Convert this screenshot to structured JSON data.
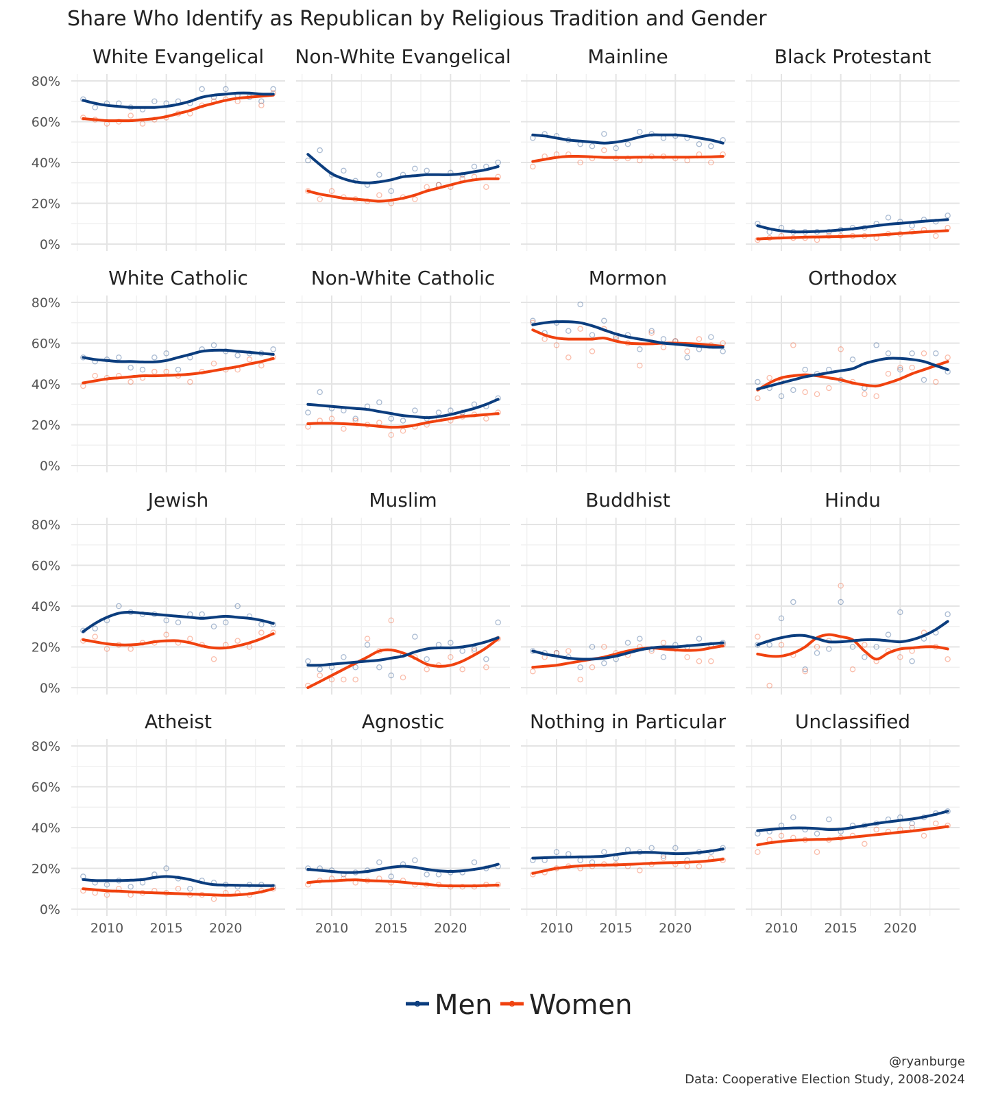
{
  "chart_data": {
    "type": "line",
    "title": "Share Who Identify as Republican by Religious Tradition and Gender",
    "x_ticks": [
      2010,
      2015,
      2020
    ],
    "xlim": [
      2007,
      2025
    ],
    "y_ticks": [
      0,
      20,
      40,
      60,
      80
    ],
    "y_tick_labels": [
      "0%",
      "20%",
      "40%",
      "60%",
      "80%"
    ],
    "ylim": [
      0,
      80
    ],
    "legend": {
      "position": "bottom",
      "entries": [
        {
          "name": "Men",
          "color": "#0b3d7e"
        },
        {
          "name": "Women",
          "color": "#f0420f"
        }
      ]
    },
    "caption_handle": "@ryanburge",
    "caption_source": "Data: Cooperative Election Study, 2008-2024",
    "years": [
      2008,
      2009,
      2010,
      2011,
      2012,
      2013,
      2014,
      2015,
      2016,
      2017,
      2018,
      2019,
      2020,
      2021,
      2022,
      2023,
      2024
    ],
    "facets": [
      {
        "name": "White Evangelical",
        "men_points": [
          71,
          67,
          69,
          69,
          67,
          66,
          70,
          69,
          70,
          69,
          76,
          72,
          76,
          73,
          72,
          70,
          76
        ],
        "women_points": [
          62,
          61,
          59,
          60,
          63,
          59,
          61,
          62,
          64,
          64,
          68,
          70,
          71,
          70,
          73,
          68,
          74
        ],
        "men_trend": [
          70.5,
          69,
          68,
          67.5,
          67,
          67,
          67,
          67.5,
          68.5,
          70,
          72,
          73,
          73.5,
          74,
          74,
          73.5,
          73.5
        ],
        "women_trend": [
          61.5,
          61,
          60.5,
          60.5,
          60.5,
          61,
          61.5,
          62.5,
          64,
          65.5,
          67.5,
          69,
          70.5,
          71.5,
          72,
          72.5,
          73
        ]
      },
      {
        "name": "Non-White Evangelical",
        "men_points": [
          41,
          46,
          34,
          36,
          31,
          29,
          34,
          26,
          34,
          37,
          36,
          29,
          35,
          34,
          38,
          38,
          40
        ],
        "women_points": [
          26,
          22,
          26,
          23,
          22,
          21,
          24,
          20,
          23,
          22,
          28,
          29,
          28,
          32,
          33,
          28,
          33
        ],
        "men_trend": [
          44,
          39,
          34.5,
          32,
          30.5,
          30,
          30.5,
          31.5,
          33,
          33.5,
          34,
          34,
          34,
          34.5,
          35.5,
          36.5,
          38
        ],
        "women_trend": [
          26,
          24.5,
          23.5,
          22.5,
          22,
          21.5,
          21,
          21.5,
          22.5,
          24,
          26,
          27.5,
          29,
          30.5,
          31.5,
          32,
          32
        ]
      },
      {
        "name": "Mainline",
        "men_points": [
          52,
          54,
          53,
          51,
          49,
          48,
          54,
          47,
          49,
          55,
          54,
          52,
          53,
          52,
          49,
          48,
          51
        ],
        "women_points": [
          38,
          43,
          44,
          44,
          40,
          42,
          46,
          42,
          42,
          41,
          43,
          43,
          42,
          41,
          44,
          40,
          44
        ],
        "men_trend": [
          53.5,
          53,
          52,
          51,
          50.5,
          50,
          49.5,
          50,
          51,
          52.5,
          53.5,
          53.5,
          53.5,
          53,
          52,
          51,
          49.5
        ],
        "women_trend": [
          40.5,
          41.5,
          42.5,
          43,
          43,
          42.8,
          42.5,
          42.5,
          42.5,
          42.6,
          42.6,
          42.6,
          42.6,
          42.6,
          42.7,
          42.8,
          43
        ]
      },
      {
        "name": "Black Protestant",
        "men_points": [
          10,
          6,
          8,
          6,
          6,
          6,
          6,
          7,
          8,
          8,
          10,
          13,
          11,
          9,
          12,
          11,
          14
        ],
        "women_points": [
          2,
          3,
          4,
          3,
          3,
          2,
          4,
          4,
          4,
          4,
          3,
          5,
          5,
          6,
          7,
          4,
          8
        ],
        "men_trend": [
          9,
          7.5,
          6.5,
          6,
          6,
          6.2,
          6.5,
          7,
          7.5,
          8.2,
          9,
          9.7,
          10.2,
          10.7,
          11.2,
          11.6,
          12
        ],
        "women_trend": [
          2.5,
          2.8,
          3,
          3.2,
          3.4,
          3.5,
          3.6,
          3.7,
          3.9,
          4.1,
          4.4,
          4.8,
          5.2,
          5.6,
          6,
          6.3,
          6.6
        ]
      },
      {
        "name": "White Catholic",
        "men_points": [
          53,
          51,
          52,
          53,
          48,
          47,
          53,
          55,
          47,
          53,
          57,
          59,
          56,
          54,
          55,
          55,
          57
        ],
        "women_points": [
          39,
          44,
          43,
          44,
          41,
          43,
          46,
          46,
          44,
          41,
          46,
          50,
          47,
          47,
          52,
          49,
          53
        ],
        "men_trend": [
          53,
          52,
          51.5,
          51,
          51,
          50.8,
          50.8,
          51.5,
          53,
          54.5,
          56,
          56.5,
          56.5,
          56,
          55.5,
          55,
          54.5
        ],
        "women_trend": [
          40.5,
          41.5,
          42.5,
          43,
          43.5,
          44,
          44,
          44.2,
          44.4,
          44.8,
          45.5,
          46.5,
          47.5,
          48.5,
          49.8,
          51,
          52.5
        ]
      },
      {
        "name": "Non-White Catholic",
        "men_points": [
          26,
          36,
          28,
          27,
          23,
          29,
          31,
          23,
          22,
          27,
          23,
          26,
          27,
          26,
          30,
          29,
          33
        ],
        "women_points": [
          19,
          22,
          23,
          18,
          22,
          20,
          21,
          15,
          17,
          19,
          20,
          23,
          22,
          24,
          25,
          23,
          26
        ],
        "men_trend": [
          30,
          29.5,
          29,
          28.5,
          28,
          27.5,
          26.5,
          25.5,
          24.5,
          24,
          23.5,
          24,
          25,
          26.5,
          28,
          30,
          32.5
        ],
        "women_trend": [
          20.5,
          20.7,
          20.7,
          20.5,
          20.2,
          19.8,
          19.2,
          18.8,
          19,
          19.8,
          21,
          22,
          23,
          24,
          24.5,
          25,
          25.5
        ]
      },
      {
        "name": "Mormon",
        "men_points": [
          71,
          65,
          70,
          66,
          79,
          64,
          71,
          63,
          64,
          57,
          66,
          62,
          61,
          53,
          57,
          63,
          56
        ],
        "women_points": [
          70,
          62,
          59,
          53,
          67,
          56,
          67,
          62,
          60,
          49,
          65,
          58,
          61,
          56,
          62,
          59,
          60
        ],
        "men_trend": [
          69,
          70,
          70.5,
          70.5,
          70,
          68.5,
          66.5,
          64.5,
          63,
          62,
          61,
          60,
          59.5,
          59,
          58.5,
          58,
          58
        ],
        "women_trend": [
          66.5,
          64,
          62.5,
          62,
          62,
          62,
          62.5,
          61,
          60,
          59.7,
          59.7,
          60,
          60,
          59.8,
          59.5,
          59,
          58.5
        ]
      },
      {
        "name": "Orthodox",
        "men_points": [
          41,
          38,
          34,
          37,
          47,
          45,
          47,
          42,
          52,
          38,
          59,
          55,
          47,
          55,
          42,
          55,
          46
        ],
        "women_points": [
          33,
          43,
          41,
          59,
          36,
          35,
          38,
          57,
          41,
          35,
          34,
          45,
          48,
          48,
          55,
          41,
          53
        ],
        "men_trend": [
          37.5,
          39,
          40.5,
          42,
          43.5,
          44.5,
          45.5,
          46.5,
          47.5,
          50,
          51.5,
          52.5,
          52.5,
          52,
          51,
          49,
          47
        ],
        "women_trend": [
          37,
          40.5,
          43,
          44,
          44.5,
          44,
          43,
          42,
          40.5,
          39.5,
          39,
          40.5,
          42.5,
          45,
          47,
          49,
          51
        ]
      },
      {
        "name": "Jewish",
        "men_points": [
          28,
          29,
          33,
          40,
          37,
          36,
          36,
          33,
          32,
          36,
          36,
          30,
          32,
          40,
          35,
          31,
          31
        ],
        "women_points": [
          23,
          25,
          19,
          21,
          19,
          22,
          22,
          26,
          22,
          24,
          21,
          14,
          21,
          23,
          20,
          27,
          27
        ],
        "men_trend": [
          27.5,
          31.5,
          34.5,
          36.5,
          37,
          36.5,
          36,
          35.5,
          35,
          34.5,
          34,
          34.5,
          35,
          34.5,
          34,
          33,
          31.5
        ],
        "women_trend": [
          23.5,
          22.5,
          21.5,
          21,
          21,
          21.5,
          22.5,
          23,
          23,
          22,
          20.5,
          19.5,
          19.5,
          20.5,
          22,
          24,
          26.5
        ]
      },
      {
        "name": "Muslim",
        "men_points": [
          13,
          9,
          10,
          15,
          10,
          21,
          10,
          6,
          16,
          25,
          14,
          21,
          22,
          18,
          19,
          14,
          32
        ],
        "women_points": [
          1,
          6,
          4,
          4,
          4,
          24,
          18,
          33,
          5,
          15,
          9,
          11,
          15,
          9,
          18,
          10,
          24
        ],
        "men_trend": [
          11,
          11,
          11.5,
          12,
          12.5,
          13,
          13.5,
          14.5,
          15.5,
          17.5,
          19,
          19.5,
          19.5,
          20,
          21,
          22.5,
          24.5
        ],
        "women_trend": [
          0,
          3,
          6,
          9,
          12,
          15,
          18,
          18.5,
          17,
          14.5,
          11.5,
          10.5,
          11,
          13,
          16,
          19.5,
          24
        ]
      },
      {
        "name": "Buddhist",
        "men_points": [
          18,
          17,
          17,
          15,
          10,
          20,
          12,
          14,
          22,
          24,
          19,
          15,
          21,
          20,
          24,
          21,
          22
        ],
        "women_points": [
          8,
          15,
          17,
          18,
          4,
          10,
          20,
          17,
          16,
          20,
          18,
          22,
          19,
          15,
          13,
          13,
          21
        ],
        "men_trend": [
          18,
          16.5,
          15.5,
          14.5,
          14,
          14,
          14.5,
          15.5,
          17,
          18.5,
          19.5,
          20,
          20,
          20.5,
          21,
          21.5,
          22
        ],
        "women_trend": [
          10,
          10.5,
          11,
          12,
          13,
          14,
          15,
          16.5,
          18,
          19,
          19.5,
          19,
          18.5,
          18.3,
          18.5,
          19.5,
          20.5
        ]
      },
      {
        "name": "Hindu",
        "men_points": [
          21,
          21,
          34,
          42,
          9,
          17,
          19,
          42,
          20,
          15,
          20,
          26,
          37,
          13,
          24,
          27,
          36
        ],
        "women_points": [
          25,
          1,
          21,
          16,
          8,
          20,
          23,
          50,
          9,
          21,
          13,
          18,
          15,
          18,
          27,
          20,
          14
        ],
        "men_trend": [
          21,
          23,
          24.5,
          25.5,
          25.5,
          24,
          22.5,
          22.5,
          23,
          23.5,
          23.5,
          23,
          22.5,
          23.5,
          25.5,
          28.5,
          32.5
        ],
        "women_trend": [
          16.5,
          15.5,
          15.5,
          17,
          20,
          24.5,
          26,
          25,
          23.5,
          18,
          14,
          17,
          19,
          19.5,
          20,
          20,
          19
        ]
      },
      {
        "name": "Atheist",
        "men_points": [
          16,
          13,
          12,
          14,
          11,
          13,
          17,
          20,
          15,
          10,
          14,
          13,
          12,
          11,
          12,
          12,
          11
        ],
        "women_points": [
          9,
          8,
          7,
          10,
          7,
          8,
          9,
          8,
          10,
          7,
          7,
          5,
          8,
          8,
          7,
          9,
          10
        ],
        "men_trend": [
          14.5,
          14,
          14,
          14,
          14.2,
          14.5,
          15.5,
          16,
          15.5,
          14.5,
          13,
          12,
          11.8,
          11.7,
          11.6,
          11.5,
          11.5
        ],
        "women_trend": [
          10,
          9.5,
          9,
          8.8,
          8.5,
          8.2,
          8,
          7.8,
          7.6,
          7.4,
          7.2,
          7,
          6.8,
          7,
          7.5,
          8.5,
          10
        ]
      },
      {
        "name": "Agnostic",
        "men_points": [
          20,
          20,
          19,
          17,
          18,
          19,
          23,
          16,
          22,
          24,
          17,
          17,
          18,
          18,
          23,
          20,
          21
        ],
        "women_points": [
          12,
          14,
          15,
          15,
          13,
          14,
          15,
          13,
          14,
          12,
          12,
          12,
          11,
          11,
          11,
          12,
          12
        ],
        "men_trend": [
          19.5,
          19,
          18.5,
          18,
          18,
          18.5,
          19.5,
          20.5,
          21,
          20.5,
          19.5,
          18.8,
          18.5,
          18.8,
          19.5,
          20.5,
          22
        ]
      },
      {
        "name": "Nothing in Particular",
        "men_points": [
          24,
          24,
          28,
          27,
          24,
          23,
          28,
          25,
          29,
          28,
          30,
          26,
          30,
          24,
          28,
          28,
          30
        ],
        "women_points": [
          17,
          18,
          20,
          21,
          20,
          21,
          22,
          22,
          21,
          19,
          22,
          25,
          22,
          21,
          21,
          25,
          24
        ],
        "men_trend": [
          25,
          25.2,
          25.4,
          25.5,
          25.6,
          25.7,
          26,
          26.8,
          27.5,
          27.8,
          27.8,
          27.5,
          27.2,
          27.3,
          27.8,
          28.5,
          29.5
        ],
        "women_trend": [
          17.5,
          18.8,
          20,
          20.7,
          21.2,
          21.5,
          21.6,
          21.7,
          21.9,
          22.2,
          22.5,
          22.7,
          22.8,
          23,
          23.3,
          23.8,
          24.5
        ]
      },
      {
        "name": "Unclassified",
        "men_points": [
          37,
          38,
          41,
          45,
          39,
          37,
          44,
          38,
          41,
          41,
          42,
          44,
          45,
          42,
          45,
          47,
          48
        ],
        "women_points": [
          28,
          34,
          36,
          35,
          34,
          28,
          34,
          35,
          36,
          32,
          39,
          38,
          39,
          40,
          36,
          42,
          41
        ],
        "men_trend": [
          38.5,
          39,
          39.5,
          39.8,
          39.8,
          39.5,
          39,
          39.2,
          40,
          41,
          42,
          42.8,
          43.5,
          44.2,
          45.2,
          46.5,
          48
        ],
        "women_trend": [
          31.5,
          32.5,
          33.2,
          33.7,
          34,
          34.2,
          34.3,
          34.7,
          35.3,
          35.9,
          36.5,
          37.1,
          37.7,
          38.3,
          39,
          39.7,
          40.5
        ]
      }
    ]
  }
}
